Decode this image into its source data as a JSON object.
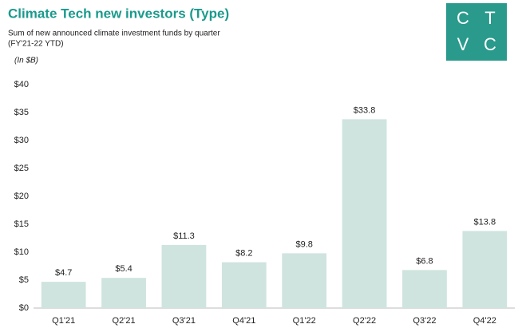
{
  "chart_data": {
    "type": "bar",
    "title": "Climate Tech new investors (Type)",
    "subtitle": [
      "Sum of new announced climate investment funds by quarter",
      "(FY'21-22 YTD)"
    ],
    "unit_note": "(In $B)",
    "categories": [
      "Q1'21",
      "Q2'21",
      "Q3'21",
      "Q4'21",
      "Q1'22",
      "Q2'22",
      "Q3'22",
      "Q4'22"
    ],
    "values": [
      4.7,
      5.4,
      11.3,
      8.2,
      9.8,
      33.8,
      6.8,
      13.8
    ],
    "value_labels": [
      "$4.7",
      "$5.4",
      "$11.3",
      "$8.2",
      "$9.8",
      "$33.8",
      "$6.8",
      "$13.8"
    ],
    "color": "#cfe4df",
    "ylim": [
      0,
      40
    ],
    "yticks": [
      {
        "value": 0,
        "label": "$0"
      },
      {
        "value": 5,
        "label": "$5"
      },
      {
        "value": 10,
        "label": "$10"
      },
      {
        "value": 15,
        "label": "$15"
      },
      {
        "value": 20,
        "label": "$20"
      },
      {
        "value": 25,
        "label": "$25"
      },
      {
        "value": 30,
        "label": "$30"
      },
      {
        "value": 35,
        "label": "$35"
      },
      {
        "value": 40,
        "label": "$40"
      }
    ],
    "grid": false
  },
  "logo": {
    "letters": [
      "C",
      "T",
      "V",
      "C"
    ]
  }
}
